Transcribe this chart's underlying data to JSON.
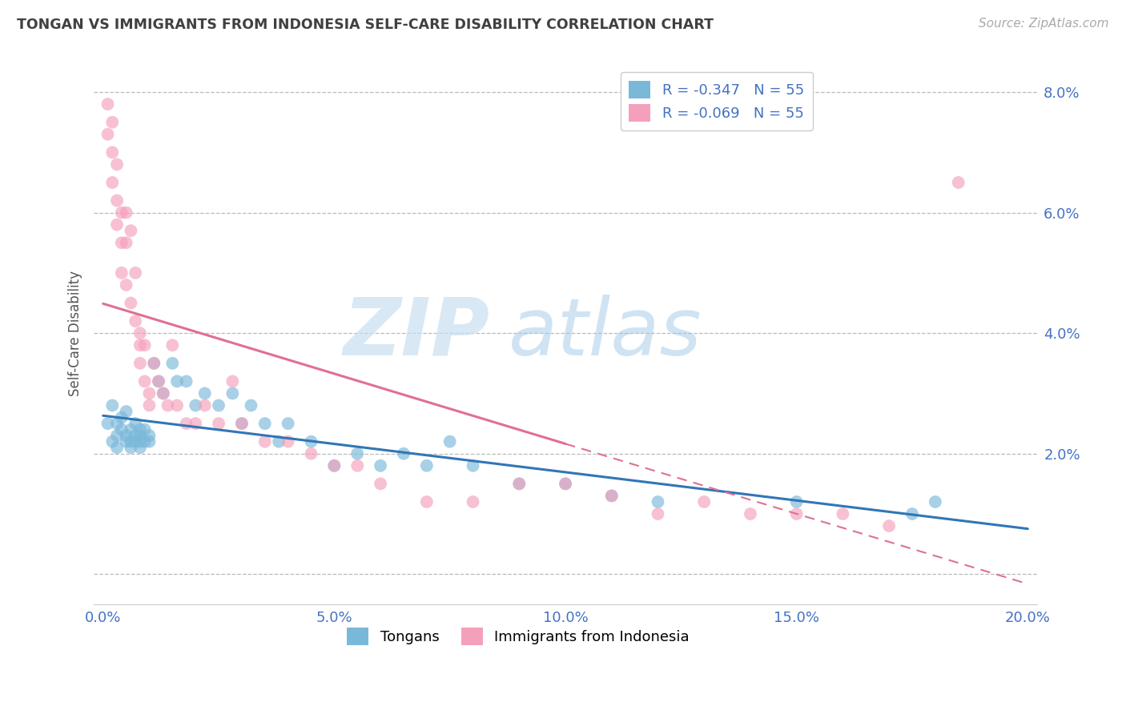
{
  "title": "TONGAN VS IMMIGRANTS FROM INDONESIA SELF-CARE DISABILITY CORRELATION CHART",
  "source": "Source: ZipAtlas.com",
  "ylabel": "Self-Care Disability",
  "xlim": [
    -0.002,
    0.202
  ],
  "ylim": [
    -0.005,
    0.085
  ],
  "xticks": [
    0.0,
    0.05,
    0.1,
    0.15,
    0.2
  ],
  "yticks": [
    0.0,
    0.02,
    0.04,
    0.06,
    0.08
  ],
  "xtick_labels": [
    "0.0%",
    "5.0%",
    "10.0%",
    "15.0%",
    "20.0%"
  ],
  "ytick_labels": [
    "",
    "2.0%",
    "4.0%",
    "6.0%",
    "8.0%"
  ],
  "blue_color": "#7ab8d9",
  "pink_color": "#f4a0bb",
  "blue_line_color": "#3176b5",
  "pink_line_color": "#e07090",
  "legend_label_blue": "R = -0.347   N = 55",
  "legend_label_pink": "R = -0.069   N = 55",
  "legend_bottom_blue": "Tongans",
  "legend_bottom_pink": "Immigrants from Indonesia",
  "watermark_zip": "ZIP",
  "watermark_atlas": "atlas",
  "background_color": "#ffffff",
  "grid_color": "#bbbbbb",
  "title_color": "#404040",
  "axis_label_color": "#555555",
  "tick_label_color": "#4472c4",
  "source_color": "#aaaaaa",
  "blue_x": [
    0.001,
    0.002,
    0.002,
    0.003,
    0.003,
    0.003,
    0.004,
    0.004,
    0.005,
    0.005,
    0.005,
    0.006,
    0.006,
    0.006,
    0.007,
    0.007,
    0.007,
    0.008,
    0.008,
    0.008,
    0.008,
    0.009,
    0.009,
    0.01,
    0.01,
    0.011,
    0.012,
    0.013,
    0.015,
    0.016,
    0.018,
    0.02,
    0.022,
    0.025,
    0.028,
    0.03,
    0.032,
    0.035,
    0.038,
    0.04,
    0.045,
    0.05,
    0.055,
    0.06,
    0.065,
    0.07,
    0.075,
    0.08,
    0.09,
    0.1,
    0.11,
    0.12,
    0.15,
    0.175,
    0.18
  ],
  "blue_y": [
    0.025,
    0.022,
    0.028,
    0.025,
    0.023,
    0.021,
    0.026,
    0.024,
    0.027,
    0.023,
    0.022,
    0.024,
    0.022,
    0.021,
    0.025,
    0.023,
    0.022,
    0.024,
    0.023,
    0.022,
    0.021,
    0.024,
    0.022,
    0.023,
    0.022,
    0.035,
    0.032,
    0.03,
    0.035,
    0.032,
    0.032,
    0.028,
    0.03,
    0.028,
    0.03,
    0.025,
    0.028,
    0.025,
    0.022,
    0.025,
    0.022,
    0.018,
    0.02,
    0.018,
    0.02,
    0.018,
    0.022,
    0.018,
    0.015,
    0.015,
    0.013,
    0.012,
    0.012,
    0.01,
    0.012
  ],
  "pink_x": [
    0.001,
    0.001,
    0.002,
    0.002,
    0.002,
    0.003,
    0.003,
    0.003,
    0.004,
    0.004,
    0.004,
    0.005,
    0.005,
    0.005,
    0.006,
    0.006,
    0.007,
    0.007,
    0.008,
    0.008,
    0.008,
    0.009,
    0.009,
    0.01,
    0.01,
    0.011,
    0.012,
    0.013,
    0.014,
    0.015,
    0.016,
    0.018,
    0.02,
    0.022,
    0.025,
    0.028,
    0.03,
    0.035,
    0.04,
    0.045,
    0.05,
    0.055,
    0.06,
    0.07,
    0.08,
    0.09,
    0.1,
    0.11,
    0.12,
    0.13,
    0.14,
    0.15,
    0.16,
    0.17,
    0.185
  ],
  "pink_y": [
    0.078,
    0.073,
    0.075,
    0.07,
    0.065,
    0.068,
    0.062,
    0.058,
    0.06,
    0.055,
    0.05,
    0.06,
    0.055,
    0.048,
    0.057,
    0.045,
    0.05,
    0.042,
    0.04,
    0.038,
    0.035,
    0.038,
    0.032,
    0.03,
    0.028,
    0.035,
    0.032,
    0.03,
    0.028,
    0.038,
    0.028,
    0.025,
    0.025,
    0.028,
    0.025,
    0.032,
    0.025,
    0.022,
    0.022,
    0.02,
    0.018,
    0.018,
    0.015,
    0.012,
    0.012,
    0.015,
    0.015,
    0.013,
    0.01,
    0.012,
    0.01,
    0.01,
    0.01,
    0.008,
    0.065
  ]
}
